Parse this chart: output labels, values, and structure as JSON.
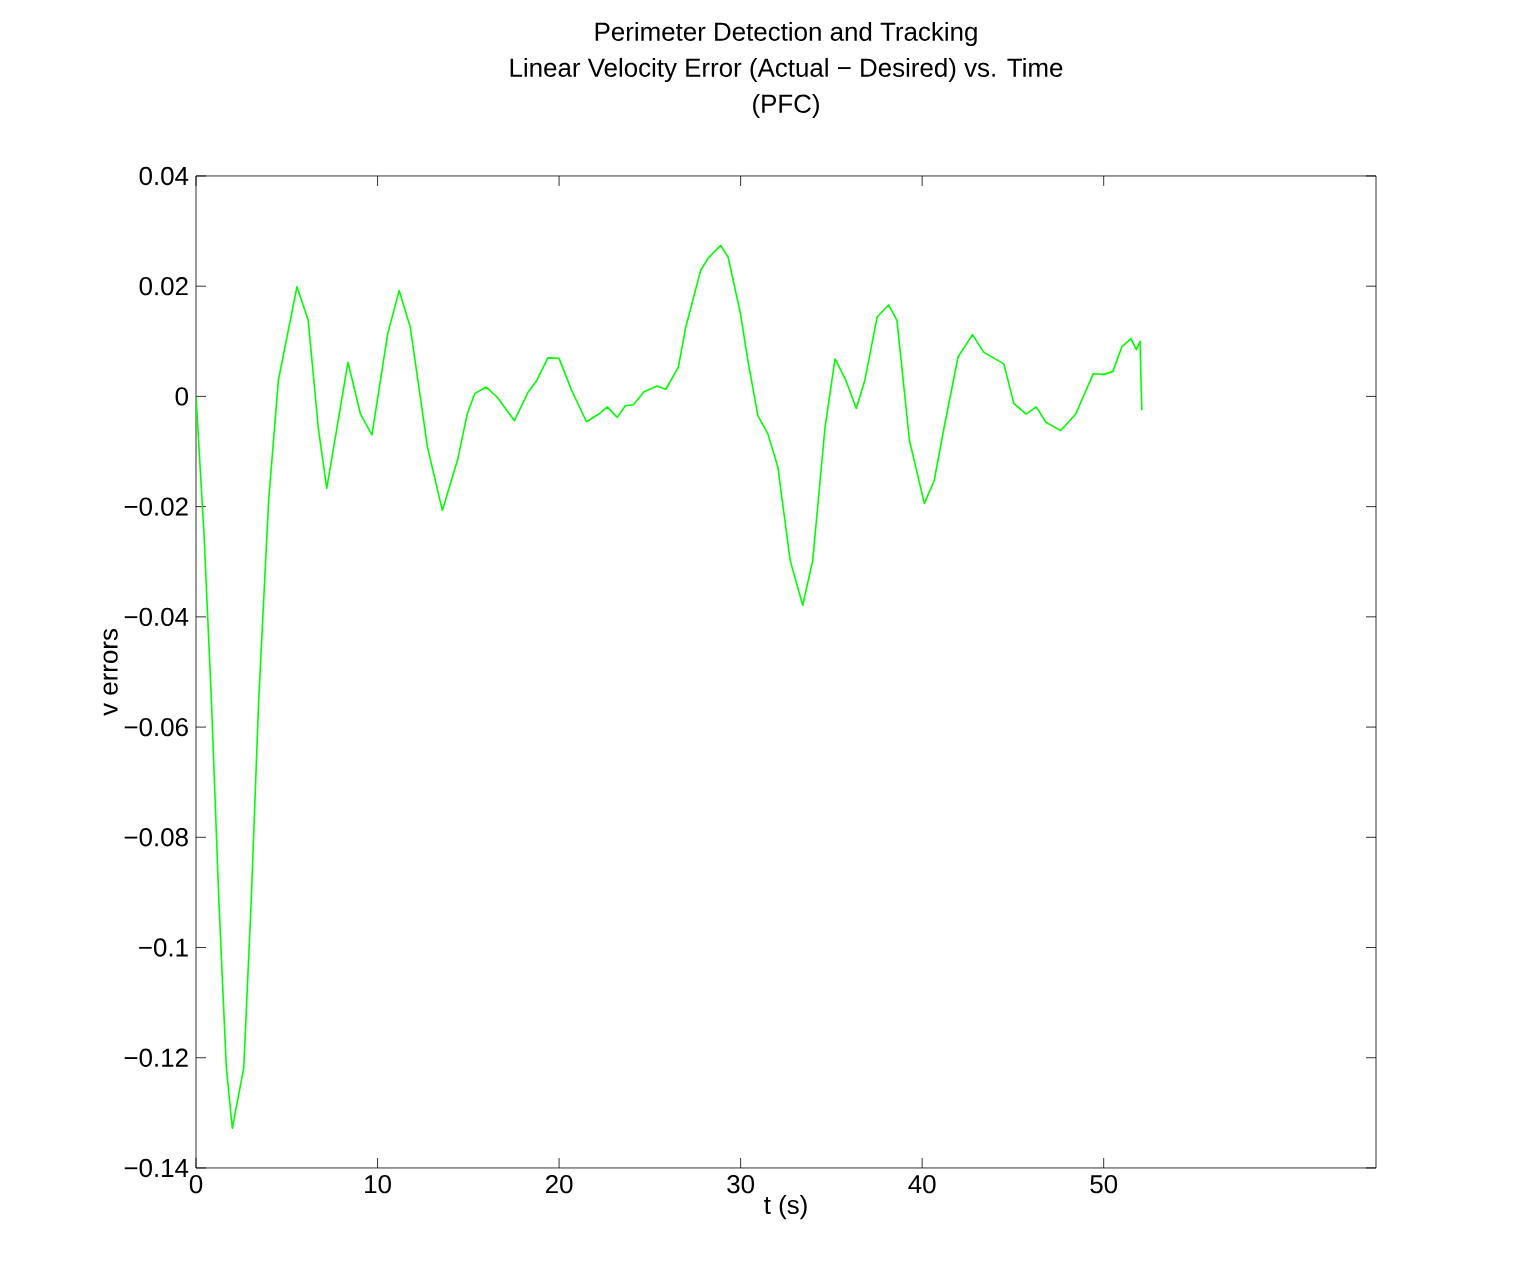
{
  "chart_data": {
    "type": "line",
    "title": "Perimeter Detection and Tracking",
    "subtitle": "Linear Velocity Error (Actual − Desired) vs. Time",
    "annotations": [
      "(PFC)"
    ],
    "xlabel": "t (s)",
    "ylabel": "v errors",
    "color": "#00ff00",
    "x": [
      0,
      0.44,
      0.85,
      1.26,
      1.67,
      2.0,
      2.63,
      3.04,
      3.45,
      4.0,
      4.54,
      5.56,
      6.18,
      6.73,
      7.2,
      7.83,
      8.37,
      9.06,
      9.69,
      10.56,
      11.19,
      11.8,
      12.75,
      13.57,
      14.4,
      14.94,
      15.35,
      15.98,
      16.58,
      17.54,
      18.28,
      18.77,
      19.38,
      20.0,
      20.69,
      21.51,
      22.19,
      22.66,
      23.2,
      23.65,
      24.1,
      24.66,
      25.39,
      25.88,
      26.57,
      26.98,
      27.8,
      28.21,
      28.9,
      29.31,
      29.99,
      30.4,
      30.95,
      31.5,
      32.05,
      32.73,
      33.42,
      33.97,
      34.65,
      35.2,
      35.8,
      36.37,
      36.84,
      37.52,
      38.15,
      38.61,
      39.3,
      40.12,
      40.66,
      41.21,
      41.98,
      42.77,
      43.4,
      44.5,
      45.05,
      45.73,
      46.28,
      46.82,
      47.64,
      48.46,
      49.42,
      50.0,
      50.5,
      51.0,
      51.5,
      51.8,
      52.0,
      52.1
    ],
    "values": [
      0,
      -0.025,
      -0.0553,
      -0.0916,
      -0.1218,
      -0.1328,
      -0.1218,
      -0.0916,
      -0.0553,
      -0.0189,
      0.003,
      0.0199,
      0.0138,
      -0.0056,
      -0.0167,
      -0.0044,
      0.0062,
      -0.0032,
      -0.007,
      0.0114,
      0.0192,
      0.0126,
      -0.0092,
      -0.0207,
      -0.0116,
      -0.0032,
      0.0005,
      0.0017,
      -0.0001,
      -0.0044,
      0.0007,
      0.0029,
      0.007,
      0.0069,
      0.0011,
      -0.0046,
      -0.0032,
      -0.0019,
      -0.0038,
      -0.0017,
      -0.0015,
      0.0008,
      0.0019,
      0.0013,
      0.0053,
      0.0126,
      0.0229,
      0.0251,
      0.0274,
      0.0253,
      0.015,
      0.0065,
      -0.0035,
      -0.0068,
      -0.0128,
      -0.0298,
      -0.0379,
      -0.0298,
      -0.0056,
      0.0068,
      0.0029,
      -0.0022,
      0.0029,
      0.0144,
      0.0166,
      0.0138,
      -0.008,
      -0.0194,
      -0.0153,
      -0.0056,
      0.0072,
      0.0112,
      0.008,
      0.0059,
      -0.0013,
      -0.0032,
      -0.0019,
      -0.0047,
      -0.0062,
      -0.0032,
      0.0041,
      0.004,
      0.0045,
      0.009,
      0.0105,
      0.0085,
      0.01,
      -0.0025
    ],
    "xlim": [
      0,
      65
    ],
    "xticks": [
      0,
      10,
      20,
      30,
      40,
      50
    ],
    "ylim": [
      -0.14,
      0.04
    ],
    "yticks": [
      {
        "value": -0.14,
        "label": "−0.14"
      },
      {
        "value": -0.12,
        "label": "−0.12"
      },
      {
        "value": -0.1,
        "label": "−0.1"
      },
      {
        "value": -0.08,
        "label": "−0.08"
      },
      {
        "value": -0.06,
        "label": "−0.06"
      },
      {
        "value": -0.04,
        "label": "−0.04"
      },
      {
        "value": -0.02,
        "label": "−0.02"
      },
      {
        "value": 0,
        "label": "0"
      },
      {
        "value": 0.02,
        "label": "0.02"
      },
      {
        "value": 0.04,
        "label": "0.04"
      }
    ]
  }
}
